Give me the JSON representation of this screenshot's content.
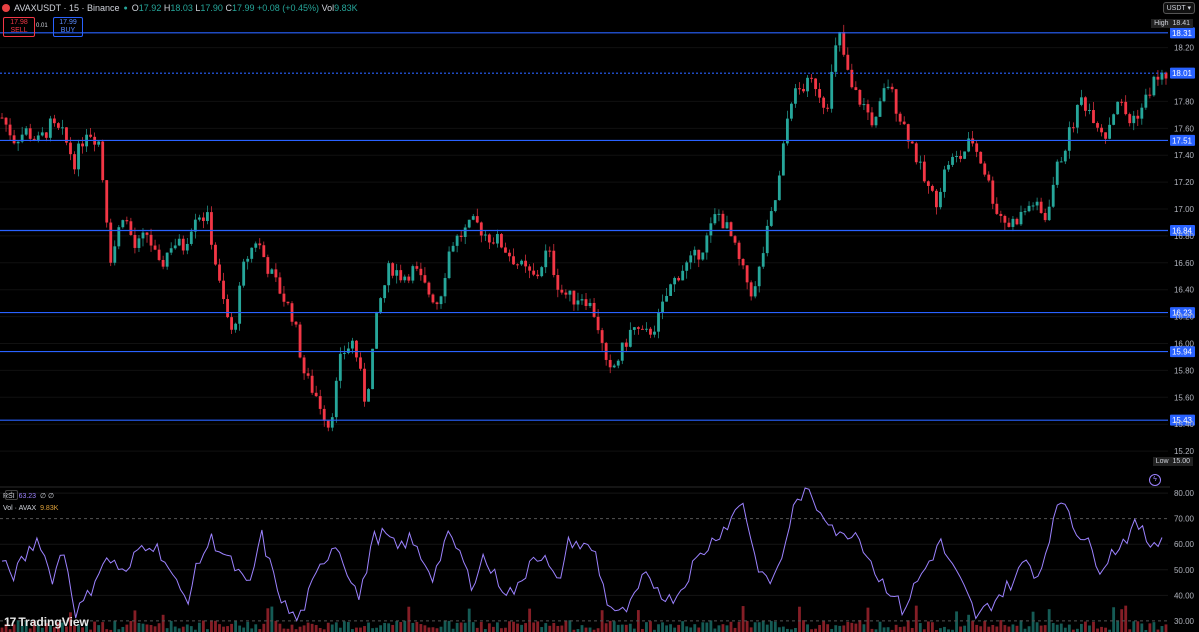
{
  "header": {
    "symbol": "AVAXUSDT · 15 · Binance",
    "open_label": "O",
    "open": "17.92",
    "high_label": "H",
    "high": "18.03",
    "low_label": "L",
    "low": "17.90",
    "close_label": "C",
    "close": "17.99",
    "change": "+0.08 (+0.45%)",
    "vol_label": "Vol",
    "vol": "9.83K"
  },
  "trade": {
    "sell_price": "17.98",
    "sell_label": "SELL",
    "spread": "0.01",
    "buy_price": "17.99",
    "buy_label": "BUY"
  },
  "currency": "USDT",
  "high_tag": {
    "label": "High",
    "value": "18.41"
  },
  "low_tag": {
    "label": "Low",
    "value": "15.00"
  },
  "indicators": {
    "rsi_name": "RSI",
    "rsi_value": "63.23",
    "rsi_extra": "∅ ∅",
    "vol_name": "Vol · AVAX",
    "vol_value": "9.83K",
    "collapse_icon": "chevron-up-icon"
  },
  "branding": {
    "logo": "TradingView"
  },
  "colors": {
    "up": "#26a69a",
    "down": "#f23645",
    "level": "#2962ff",
    "rsi": "#9c82ff"
  },
  "chart_data": {
    "type": "candlestick",
    "ylim": [
      15.0,
      18.45
    ],
    "price_ticks": [
      "18.20",
      "17.80",
      "17.60",
      "17.40",
      "17.20",
      "17.00",
      "16.80",
      "16.60",
      "16.40",
      "16.20",
      "16.00",
      "15.80",
      "15.60",
      "15.40",
      "15.20"
    ],
    "levels": [
      "18.31",
      "18.01",
      "17.51",
      "16.84",
      "16.23",
      "15.94",
      "15.43"
    ],
    "last_price": "18.01",
    "close_path": [
      17.68,
      17.52,
      17.58,
      17.5,
      17.62,
      17.55,
      17.35,
      17.6,
      17.5,
      16.62,
      16.98,
      16.7,
      16.82,
      16.55,
      16.75,
      16.72,
      16.98,
      16.92,
      16.4,
      16.05,
      16.6,
      16.78,
      16.55,
      16.38,
      16.2,
      15.75,
      15.6,
      15.38,
      15.92,
      16.02,
      15.55,
      16.25,
      16.58,
      16.5,
      16.55,
      16.4,
      16.3,
      16.74,
      16.82,
      16.9,
      16.8,
      16.76,
      16.65,
      16.55,
      16.48,
      16.7,
      16.4,
      16.33,
      16.36,
      16.2,
      15.75,
      15.92,
      16.12,
      16.05,
      16.15,
      16.4,
      16.55,
      16.62,
      16.75,
      16.98,
      16.82,
      16.55,
      16.35,
      16.78,
      17.15,
      17.82,
      17.9,
      17.95,
      17.75,
      18.32,
      17.9,
      17.78,
      17.62,
      17.95,
      17.7,
      17.5,
      17.22,
      17.05,
      17.35,
      17.38,
      17.52,
      17.3,
      17.0,
      16.88,
      16.95,
      17.05,
      16.92,
      17.3,
      17.55,
      17.82,
      17.7,
      17.55,
      17.82,
      17.65,
      17.75,
      17.95,
      18.0
    ],
    "rsi_ticks": [
      "80.00",
      "70.00",
      "60.00",
      "50.00",
      "40.00",
      "30.00"
    ],
    "rsi_ylim": [
      28,
      82
    ],
    "rsi_path": [
      52,
      48,
      56,
      63,
      46,
      58,
      33,
      40,
      52,
      54,
      47,
      58,
      61,
      56,
      45,
      38,
      54,
      62,
      56,
      50,
      42,
      64,
      47,
      35,
      30,
      42,
      53,
      61,
      50,
      38,
      62,
      64,
      58,
      62,
      55,
      47,
      63,
      58,
      44,
      55,
      47,
      41,
      43,
      57,
      54,
      44,
      62,
      59,
      58,
      38,
      32,
      36,
      47,
      44,
      38,
      42,
      52,
      58,
      64,
      69,
      78,
      55,
      44,
      51,
      72,
      82,
      75,
      70,
      62,
      66,
      58,
      47,
      42,
      34,
      44,
      52,
      61,
      51,
      42,
      31,
      36,
      41,
      46,
      54,
      47,
      66,
      79,
      66,
      60,
      51,
      57,
      62,
      68,
      60,
      63
    ]
  }
}
